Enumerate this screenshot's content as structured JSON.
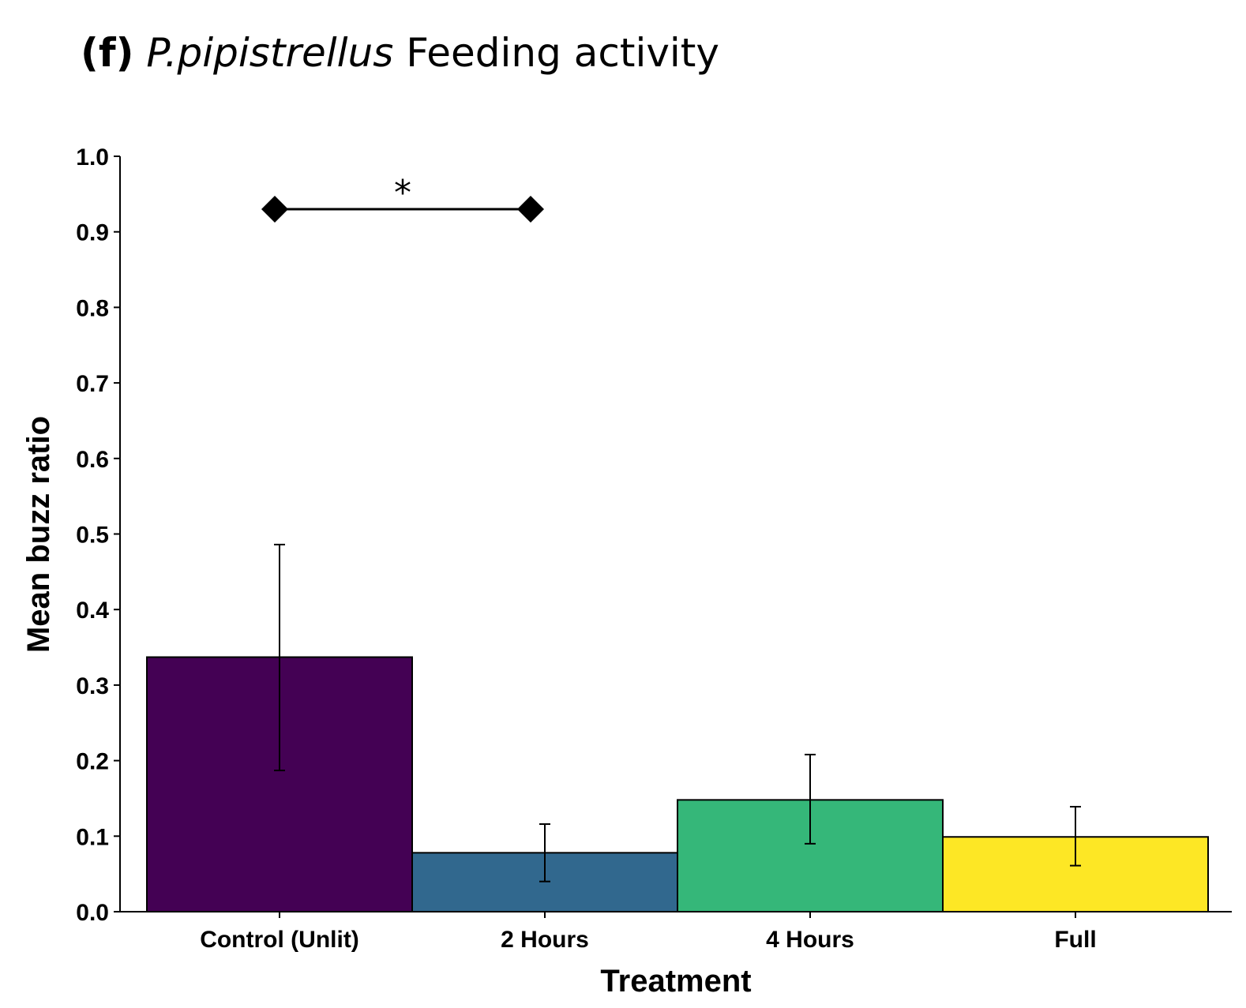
{
  "title": {
    "tag": "(f)",
    "species": "P.pipistrellus",
    "text": "Feeding activity"
  },
  "chart_data": {
    "type": "bar",
    "xlabel": "Treatment",
    "ylabel": "Mean buzz ratio",
    "ylim": [
      0,
      1.0
    ],
    "yticks": [
      "0.0",
      "0.1",
      "0.2",
      "0.3",
      "0.4",
      "0.5",
      "0.6",
      "0.7",
      "0.8",
      "0.9",
      "1.0"
    ],
    "categories": [
      "Control (Unlit)",
      "2 Hours",
      "4 Hours",
      "Full"
    ],
    "values": [
      0.337,
      0.078,
      0.148,
      0.099
    ],
    "error_low": [
      0.187,
      0.04,
      0.09,
      0.061
    ],
    "error_high": [
      0.486,
      0.116,
      0.208,
      0.139
    ],
    "colors": [
      "#440154",
      "#31688e",
      "#35b779",
      "#fde725"
    ],
    "grid": false,
    "annotation": {
      "label": "*",
      "from_category": 0,
      "to_category": 1,
      "y": 0.93
    }
  }
}
